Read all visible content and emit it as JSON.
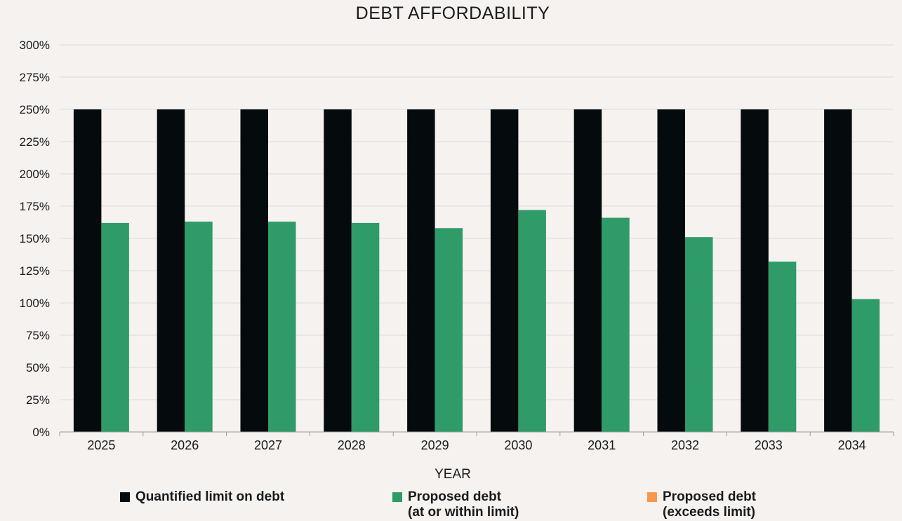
{
  "chart_data": {
    "type": "bar",
    "title": "DEBT AFFORDABILITY",
    "xlabel": "YEAR",
    "ylabel": "",
    "categories": [
      "2025",
      "2026",
      "2027",
      "2028",
      "2029",
      "2030",
      "2031",
      "2032",
      "2033",
      "2034"
    ],
    "ylim": [
      0,
      300
    ],
    "yticks": [
      0,
      25,
      50,
      75,
      100,
      125,
      150,
      175,
      200,
      225,
      250,
      275,
      300
    ],
    "ytick_labels": [
      "0%",
      "25%",
      "50%",
      "75%",
      "100%",
      "125%",
      "150%",
      "175%",
      "200%",
      "225%",
      "250%",
      "275%",
      "300%"
    ],
    "grid": true,
    "legend_position": "bottom",
    "series": [
      {
        "name": "Quantified limit on debt",
        "color": "#050a0c",
        "values": [
          250,
          250,
          250,
          250,
          250,
          250,
          250,
          250,
          250,
          250
        ]
      },
      {
        "name": "Proposed debt\n(at or within limit)",
        "color": "#2e9b68",
        "values": [
          162,
          163,
          163,
          162,
          158,
          172,
          166,
          151,
          132,
          103
        ]
      },
      {
        "name": "Proposed debt\n(exceeds limit)",
        "color": "#f7984a",
        "values": [
          null,
          null,
          null,
          null,
          null,
          null,
          null,
          null,
          null,
          null
        ]
      }
    ]
  }
}
